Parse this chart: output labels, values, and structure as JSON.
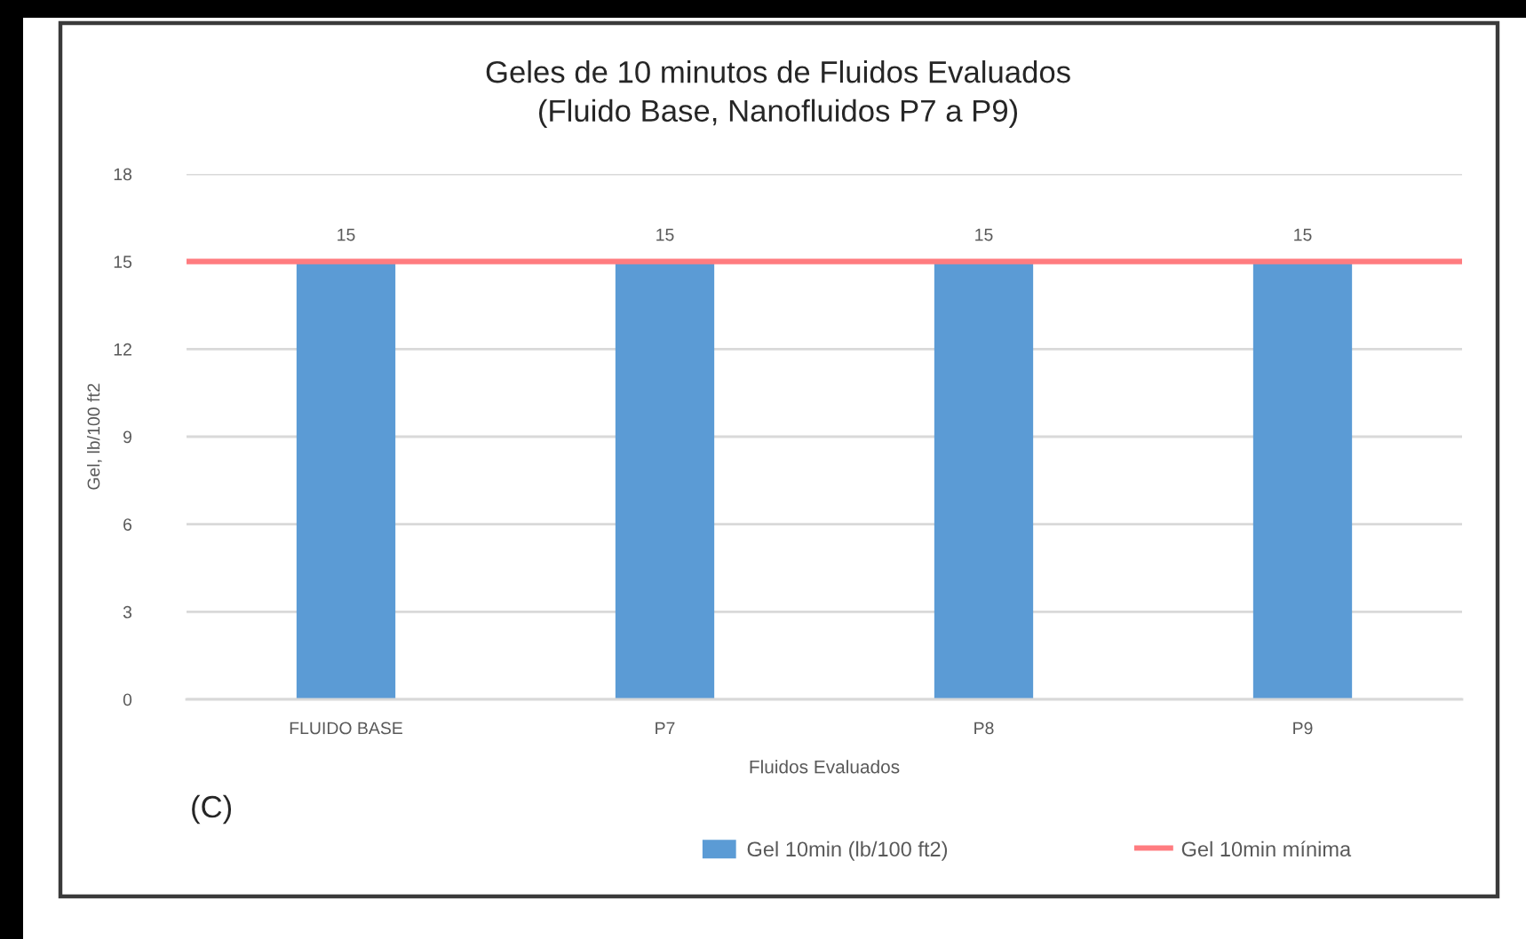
{
  "chart_data": {
    "type": "bar",
    "title": "Geles de 10 minutos de Fluidos Evaluados\n(Fluido Base, Nanofluidos P7 a P9)",
    "xlabel": "Fluidos Evaluados",
    "ylabel": "Gel, lb/100 ft2",
    "categories": [
      "FLUIDO BASE",
      "P7",
      "P8",
      "P9"
    ],
    "series": [
      {
        "name": "Gel 10min (lb/100 ft2)",
        "color": "#5b9bd5",
        "values": [
          15,
          15,
          15,
          15
        ]
      }
    ],
    "ylim": [
      0,
      18
    ],
    "yticks": [
      0,
      3,
      6,
      9,
      12,
      15,
      18
    ],
    "grid": "y",
    "data_labels": true,
    "ref_lines": [
      {
        "axis": "y",
        "value": 15,
        "label": "Gel 10min mínima",
        "color": "#ff7c80"
      }
    ],
    "annotations": [
      "(C)"
    ],
    "legend": "bottom"
  }
}
